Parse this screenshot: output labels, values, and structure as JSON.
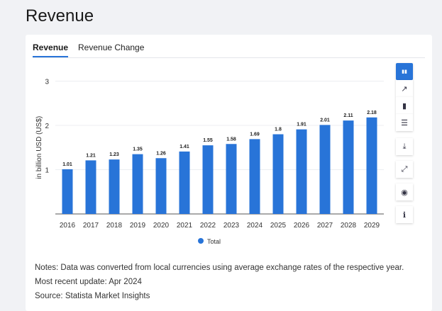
{
  "page_title": "Revenue",
  "tabs": [
    {
      "label": "Revenue",
      "active": true
    },
    {
      "label": "Revenue Change",
      "active": false
    }
  ],
  "toolbar": [
    {
      "icon": "column-layout-icon",
      "active": true
    },
    {
      "icon": "line-chart-icon"
    },
    {
      "icon": "bar-chart-icon"
    },
    {
      "icon": "table-icon"
    },
    {
      "icon": "download-icon"
    },
    {
      "icon": "expand-icon"
    },
    {
      "icon": "eye-icon"
    },
    {
      "icon": "info-icon"
    }
  ],
  "notes": {
    "notes": "Notes: Data was converted from local currencies using average exchange rates of the respective year.",
    "update": "Most recent update: Apr 2024",
    "source": "Source: Statista Market Insights"
  },
  "chart_data": {
    "type": "bar",
    "title": "",
    "xlabel": "",
    "ylabel": "in billion USD (US$)",
    "ylim": [
      0,
      3
    ],
    "yticks": [
      1,
      2,
      3
    ],
    "grid": true,
    "legend": {
      "position": "bottom",
      "entries": [
        "Total"
      ]
    },
    "color": "#2874d8",
    "categories": [
      "2016",
      "2017",
      "2018",
      "2019",
      "2020",
      "2021",
      "2022",
      "2023",
      "2024",
      "2025",
      "2026",
      "2027",
      "2028",
      "2029"
    ],
    "series": [
      {
        "name": "Total",
        "values": [
          1.01,
          1.21,
          1.23,
          1.35,
          1.26,
          1.41,
          1.55,
          1.58,
          1.69,
          1.8,
          1.91,
          2.01,
          2.11,
          2.18
        ]
      }
    ]
  }
}
